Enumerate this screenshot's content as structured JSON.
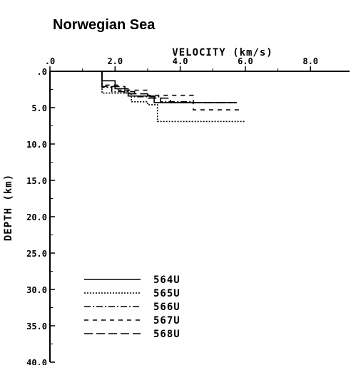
{
  "title": "Norwegian Sea",
  "chart_data": {
    "type": "line",
    "title": "Norwegian Sea",
    "xlabel": "VELOCITY (km/s)",
    "ylabel": "DEPTH (km)",
    "x_axis_position": "top",
    "y_inverted": true,
    "xlim": [
      0,
      9.2
    ],
    "ylim": [
      0,
      40
    ],
    "x_ticks": [
      0,
      2,
      4,
      6,
      8
    ],
    "x_tick_labels": [
      ".0",
      "2.0",
      "4.0",
      "6.0",
      "8.0"
    ],
    "y_ticks": [
      0,
      5,
      10,
      15,
      20,
      25,
      30,
      35,
      40
    ],
    "y_tick_labels": [
      ".0",
      "5.0",
      "10.0",
      "15.0",
      "20.0",
      "25.0",
      "30.0",
      "35.0",
      "40.0"
    ],
    "grid": false,
    "legend_position": "bottom-left",
    "series": [
      {
        "name": "564U",
        "style": "solid",
        "x": [
          1.6,
          1.6,
          2.0,
          2.0,
          2.4,
          2.4,
          3.2,
          3.2,
          4.6,
          4.6,
          5.7
        ],
        "y": [
          0.0,
          1.3,
          1.3,
          2.4,
          2.4,
          3.4,
          3.4,
          4.3,
          4.3,
          4.3,
          4.3
        ]
      },
      {
        "name": "565U",
        "style": "dotted",
        "x": [
          1.6,
          1.6,
          2.5,
          2.5,
          3.0,
          3.0,
          3.3,
          3.3,
          6.0
        ],
        "y": [
          0.0,
          3.0,
          3.0,
          4.2,
          4.2,
          4.6,
          4.6,
          6.9,
          6.9
        ]
      },
      {
        "name": "566U",
        "style": "dash-dot",
        "x": [
          1.6,
          1.6,
          1.9,
          1.9,
          2.6,
          2.6,
          3.4,
          3.4,
          4.4
        ],
        "y": [
          0.0,
          2.2,
          2.2,
          2.8,
          2.8,
          3.5,
          3.5,
          4.2,
          4.2
        ]
      },
      {
        "name": "567U",
        "style": "short-dash",
        "x": [
          1.6,
          1.6,
          2.1,
          2.1,
          3.0,
          3.0,
          4.4,
          4.4,
          5.9
        ],
        "y": [
          0.0,
          1.9,
          1.9,
          2.6,
          2.6,
          3.3,
          3.3,
          5.3,
          5.3
        ]
      },
      {
        "name": "568U",
        "style": "long-dash",
        "x": [
          1.6,
          1.6,
          2.3,
          2.3,
          3.0,
          3.0,
          3.7,
          3.7,
          5.8
        ],
        "y": [
          0.0,
          2.1,
          2.1,
          3.1,
          3.1,
          3.7,
          3.7,
          4.3,
          4.3
        ]
      }
    ]
  }
}
